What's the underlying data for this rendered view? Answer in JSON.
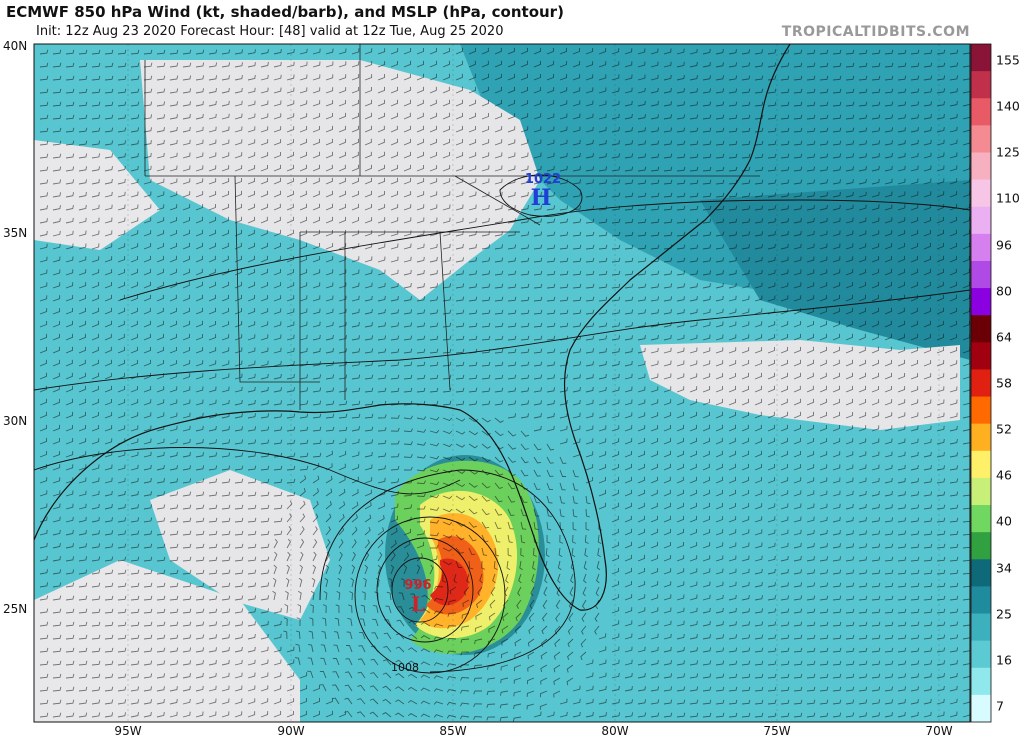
{
  "header": {
    "title": "ECMWF 850 hPa Wind (kt, shaded/barb), and MSLP (hPa, contour)",
    "subtitle": "Init: 12z Aug 23 2020   Forecast Hour: [48]   valid at 12z Tue, Aug 25 2020",
    "brand": "TROPICALTIDBITS.COM"
  },
  "map": {
    "lat_labels": [
      "40N",
      "35N",
      "30N",
      "25N"
    ],
    "lon_labels": [
      "95W",
      "90W",
      "85W",
      "80W",
      "75W",
      "70W"
    ],
    "pressure_centers": [
      {
        "type": "H",
        "value": "1022",
        "color": "#1f3fd6"
      },
      {
        "type": "L",
        "value": "996",
        "color": "#d0202a"
      }
    ],
    "isobar_label": "1008"
  },
  "colorbar": {
    "ticks": [
      "155",
      "140",
      "125",
      "110",
      "96",
      "80",
      "64",
      "58",
      "52",
      "46",
      "40",
      "34",
      "25",
      "16",
      "7"
    ],
    "colors": [
      "#8a1438",
      "#c0304a",
      "#e85a66",
      "#f48a92",
      "#f6b0c0",
      "#f7c6e6",
      "#eab0f2",
      "#d680f0",
      "#b04ae6",
      "#8a00e0",
      "#6a0006",
      "#a00010",
      "#e02010",
      "#ff6a00",
      "#ffb020",
      "#fff06a",
      "#c8f078",
      "#70d860",
      "#30a040",
      "#0e6a78",
      "#1f8c9e",
      "#3db0be",
      "#5ccad2",
      "#8ee8ec",
      "#d8fbff"
    ]
  }
}
